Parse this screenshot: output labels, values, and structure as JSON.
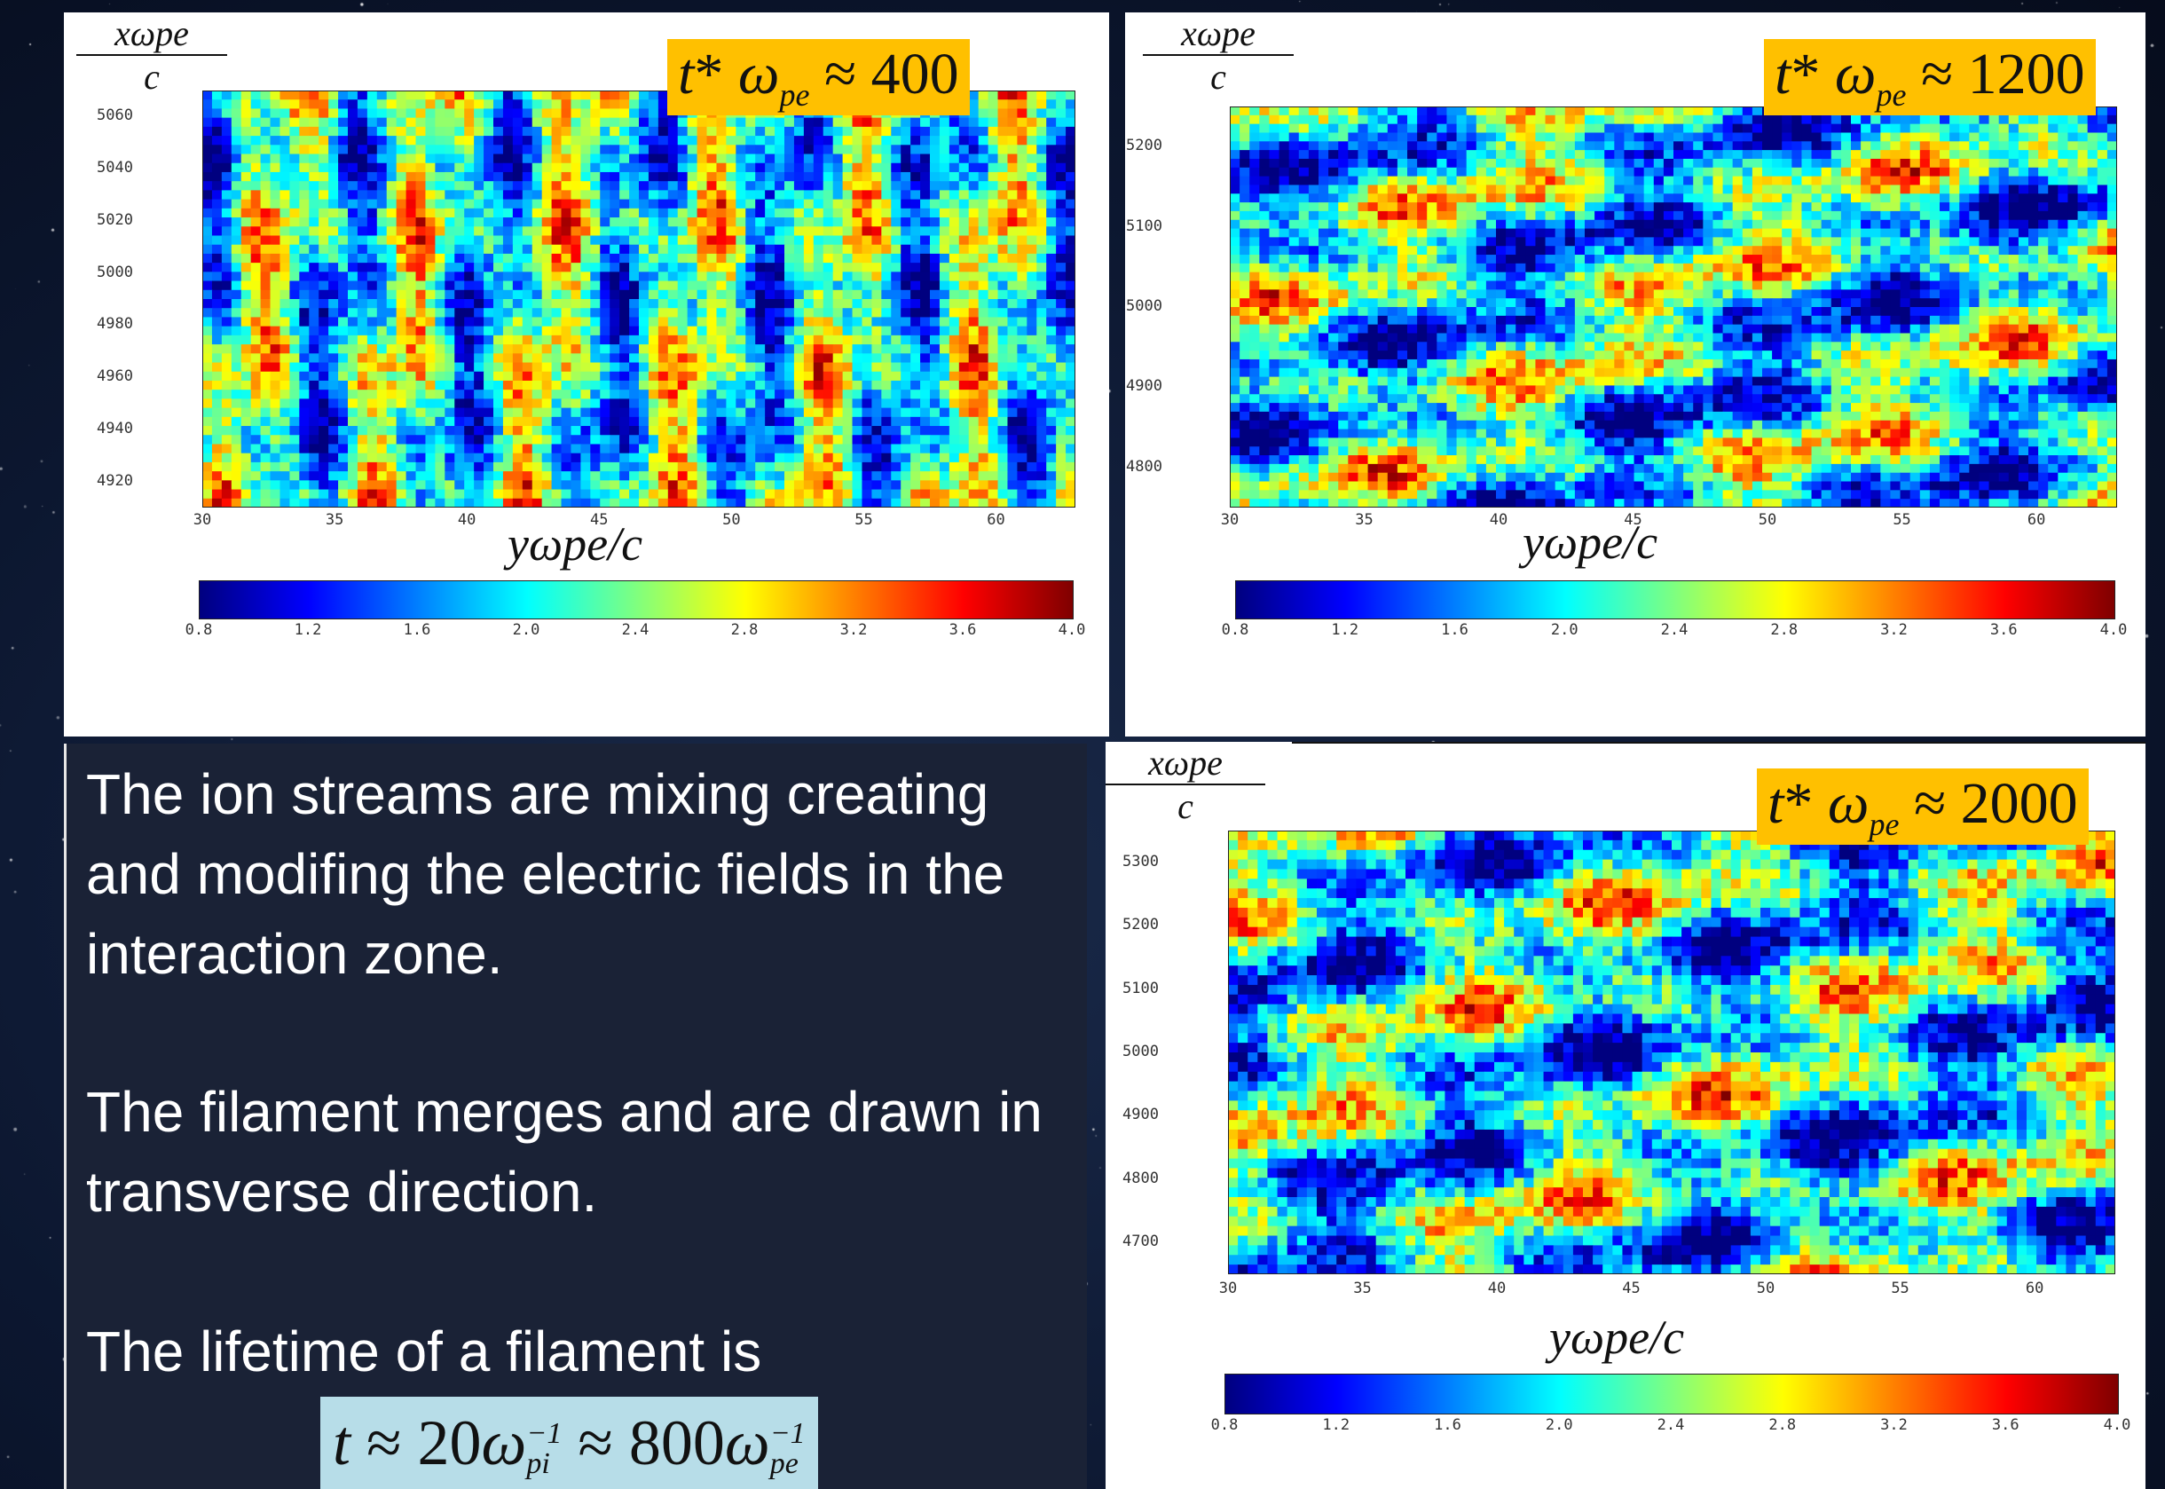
{
  "panels": [
    {
      "id": "panel-1",
      "time_label": {
        "lhs": "t",
        "op": "*",
        "omega": "ω",
        "sub": "pe",
        "approx": "≈",
        "value": "400"
      },
      "y_axis_label": {
        "numerator": "xωpe",
        "denominator": "c"
      },
      "x_axis_label": "yωpe/c",
      "y_ticks": [
        "5060",
        "5040",
        "5020",
        "5000",
        "4980",
        "4960",
        "4940",
        "4920"
      ],
      "x_ticks": [
        "30",
        "35",
        "40",
        "45",
        "50",
        "55",
        "60"
      ],
      "colorbar_ticks": [
        "0.8",
        "1.2",
        "1.6",
        "2.0",
        "2.4",
        "2.8",
        "3.2",
        "3.6",
        "4.0"
      ]
    },
    {
      "id": "panel-2",
      "time_label": {
        "lhs": "t",
        "op": "*",
        "omega": "ω",
        "sub": "pe",
        "approx": "≈",
        "value": "1200"
      },
      "y_axis_label": {
        "numerator": "xωpe",
        "denominator": "c"
      },
      "x_axis_label": "yωpe/c",
      "y_ticks": [
        "5200",
        "5100",
        "5000",
        "4900",
        "4800"
      ],
      "x_ticks": [
        "30",
        "35",
        "40",
        "45",
        "50",
        "55",
        "60"
      ],
      "colorbar_ticks": [
        "0.8",
        "1.2",
        "1.6",
        "2.0",
        "2.4",
        "2.8",
        "3.2",
        "3.6",
        "4.0"
      ]
    },
    {
      "id": "panel-3",
      "time_label": {
        "lhs": "t",
        "op": "*",
        "omega": "ω",
        "sub": "pe",
        "approx": "≈",
        "value": "2000"
      },
      "y_axis_label": {
        "numerator": "xωpe",
        "denominator": "c"
      },
      "x_axis_label": "yωpe/c",
      "y_ticks": [
        "5300",
        "5200",
        "5100",
        "5000",
        "4900",
        "4800",
        "4700"
      ],
      "x_ticks": [
        "30",
        "35",
        "40",
        "45",
        "50",
        "55",
        "60"
      ],
      "colorbar_ticks": [
        "0.8",
        "1.2",
        "1.6",
        "2.0",
        "2.4",
        "2.8",
        "3.2",
        "3.6",
        "4.0"
      ]
    }
  ],
  "colormap": [
    "#00007f",
    "#0000ff",
    "#007fff",
    "#00ffff",
    "#7fff7f",
    "#ffff00",
    "#ff7f00",
    "#ff0000",
    "#7f0000"
  ],
  "text": {
    "para1": "The ion streams are mixing creating and modifing the electric fields in the interaction zone.",
    "para2": "The filament merges and are drawn in transverse direction.",
    "para3": "The lifetime of a filament  is"
  },
  "formula": {
    "t": "t",
    "approx1": "≈",
    "coef1": "20",
    "omega": "ω",
    "sup": "−1",
    "sub1": "pi",
    "approx2": "≈",
    "coef2": "800",
    "sub2": "pe"
  }
}
